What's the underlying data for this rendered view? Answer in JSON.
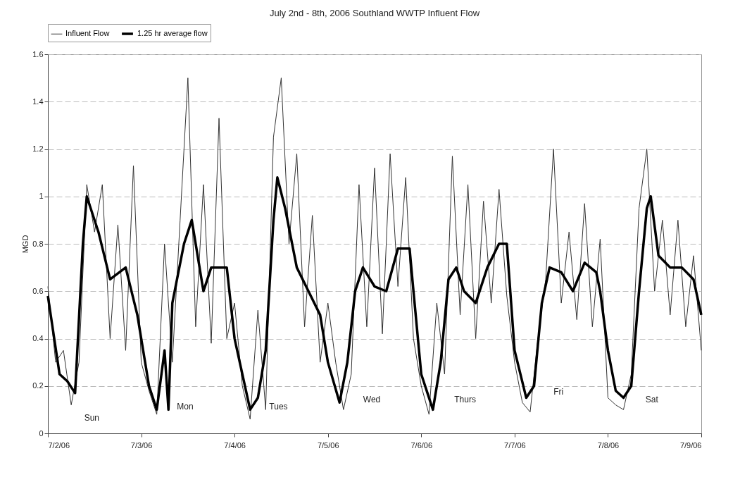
{
  "chart_data": {
    "type": "line",
    "title": "July 2nd - 8th, 2006 Southland WWTP Influent Flow",
    "ylabel": "MGD",
    "xlim": [
      "2006-07-02T00:00",
      "2006-07-09T00:00"
    ],
    "xticks": [
      {
        "value": "2006-07-02T00:00",
        "label": "7/2/06"
      },
      {
        "value": "2006-07-03T00:00",
        "label": "7/3/06"
      },
      {
        "value": "2006-07-04T00:00",
        "label": "7/4/06"
      },
      {
        "value": "2006-07-05T00:00",
        "label": "7/5/06"
      },
      {
        "value": "2006-07-06T00:00",
        "label": "7/6/06"
      },
      {
        "value": "2006-07-07T00:00",
        "label": "7/7/06"
      },
      {
        "value": "2006-07-08T00:00",
        "label": "7/8/06"
      },
      {
        "value": "2006-07-09T00:00",
        "label": "7/9/06"
      }
    ],
    "ylim": [
      0,
      1.6
    ],
    "yticks": [
      0,
      0.2,
      0.4,
      0.6,
      0.8,
      1,
      1.2,
      1.4,
      1.6
    ],
    "grid": "y",
    "legend": "top",
    "series": [
      {
        "name": "Influent Flow",
        "color": "#333333",
        "x": [
          "2006-07-02T00:00",
          "2006-07-02T02:00",
          "2006-07-02T04:00",
          "2006-07-02T06:00",
          "2006-07-02T08:00",
          "2006-07-02T10:00",
          "2006-07-02T12:00",
          "2006-07-02T14:00",
          "2006-07-02T16:00",
          "2006-07-02T18:00",
          "2006-07-02T20:00",
          "2006-07-02T22:00",
          "2006-07-03T00:00",
          "2006-07-03T02:00",
          "2006-07-03T04:00",
          "2006-07-03T06:00",
          "2006-07-03T08:00",
          "2006-07-03T10:00",
          "2006-07-03T12:00",
          "2006-07-03T14:00",
          "2006-07-03T16:00",
          "2006-07-03T18:00",
          "2006-07-03T20:00",
          "2006-07-03T22:00",
          "2006-07-04T00:00",
          "2006-07-04T02:00",
          "2006-07-04T04:00",
          "2006-07-04T06:00",
          "2006-07-04T08:00",
          "2006-07-04T10:00",
          "2006-07-04T12:00",
          "2006-07-04T14:00",
          "2006-07-04T16:00",
          "2006-07-04T18:00",
          "2006-07-04T20:00",
          "2006-07-04T22:00",
          "2006-07-05T00:00",
          "2006-07-05T02:00",
          "2006-07-05T04:00",
          "2006-07-05T06:00",
          "2006-07-05T08:00",
          "2006-07-05T10:00",
          "2006-07-05T12:00",
          "2006-07-05T14:00",
          "2006-07-05T16:00",
          "2006-07-05T18:00",
          "2006-07-05T20:00",
          "2006-07-05T22:00",
          "2006-07-06T00:00",
          "2006-07-06T02:00",
          "2006-07-06T04:00",
          "2006-07-06T06:00",
          "2006-07-06T08:00",
          "2006-07-06T10:00",
          "2006-07-06T12:00",
          "2006-07-06T14:00",
          "2006-07-06T16:00",
          "2006-07-06T18:00",
          "2006-07-06T20:00",
          "2006-07-06T22:00",
          "2006-07-07T00:00",
          "2006-07-07T02:00",
          "2006-07-07T04:00",
          "2006-07-07T06:00",
          "2006-07-07T08:00",
          "2006-07-07T10:00",
          "2006-07-07T12:00",
          "2006-07-07T14:00",
          "2006-07-07T16:00",
          "2006-07-07T18:00",
          "2006-07-07T20:00",
          "2006-07-07T22:00",
          "2006-07-08T00:00",
          "2006-07-08T02:00",
          "2006-07-08T04:00",
          "2006-07-08T06:00",
          "2006-07-08T08:00",
          "2006-07-08T10:00",
          "2006-07-08T12:00",
          "2006-07-08T14:00",
          "2006-07-08T16:00",
          "2006-07-08T18:00",
          "2006-07-08T20:00",
          "2006-07-08T22:00",
          "2006-07-09T00:00"
        ],
        "values": [
          0.62,
          0.3,
          0.35,
          0.12,
          0.3,
          1.05,
          0.85,
          1.05,
          0.4,
          0.88,
          0.35,
          1.13,
          0.3,
          0.18,
          0.08,
          0.8,
          0.3,
          0.9,
          1.5,
          0.45,
          1.05,
          0.38,
          1.33,
          0.4,
          0.55,
          0.2,
          0.06,
          0.52,
          0.1,
          1.25,
          1.5,
          0.8,
          1.18,
          0.45,
          0.92,
          0.3,
          0.55,
          0.3,
          0.1,
          0.25,
          1.05,
          0.45,
          1.12,
          0.42,
          1.18,
          0.62,
          1.08,
          0.4,
          0.2,
          0.08,
          0.55,
          0.25,
          1.17,
          0.5,
          1.05,
          0.4,
          0.98,
          0.55,
          1.03,
          0.58,
          0.3,
          0.13,
          0.09,
          0.4,
          0.65,
          1.2,
          0.55,
          0.85,
          0.48,
          0.97,
          0.45,
          0.82,
          0.15,
          0.12,
          0.1,
          0.25,
          0.95,
          1.2,
          0.6,
          0.9,
          0.5,
          0.9,
          0.45,
          0.75,
          0.35
        ]
      },
      {
        "name": "1.25 hr average flow",
        "color": "#000000",
        "x": [
          "2006-07-02T00:00",
          "2006-07-02T03:00",
          "2006-07-02T05:00",
          "2006-07-02T07:00",
          "2006-07-02T09:00",
          "2006-07-02T10:00",
          "2006-07-02T13:00",
          "2006-07-02T16:00",
          "2006-07-02T20:00",
          "2006-07-02T23:00",
          "2006-07-03T02:00",
          "2006-07-03T04:00",
          "2006-07-03T06:00",
          "2006-07-03T07:00",
          "2006-07-03T08:00",
          "2006-07-03T11:00",
          "2006-07-03T13:00",
          "2006-07-03T16:00",
          "2006-07-03T18:00",
          "2006-07-03T22:00",
          "2006-07-04T00:00",
          "2006-07-04T02:00",
          "2006-07-04T04:00",
          "2006-07-04T06:00",
          "2006-07-04T08:00",
          "2006-07-04T10:00",
          "2006-07-04T11:00",
          "2006-07-04T13:00",
          "2006-07-04T16:00",
          "2006-07-04T19:00",
          "2006-07-04T22:00",
          "2006-07-05T00:00",
          "2006-07-05T03:00",
          "2006-07-05T05:00",
          "2006-07-05T07:00",
          "2006-07-05T09:00",
          "2006-07-05T12:00",
          "2006-07-05T15:00",
          "2006-07-05T18:00",
          "2006-07-05T21:00",
          "2006-07-05T22:00",
          "2006-07-06T00:00",
          "2006-07-06T03:00",
          "2006-07-06T05:00",
          "2006-07-06T07:00",
          "2006-07-06T09:00",
          "2006-07-06T11:00",
          "2006-07-06T14:00",
          "2006-07-06T17:00",
          "2006-07-06T20:00",
          "2006-07-06T22:00",
          "2006-07-07T00:00",
          "2006-07-07T03:00",
          "2006-07-07T05:00",
          "2006-07-07T07:00",
          "2006-07-07T09:00",
          "2006-07-07T12:00",
          "2006-07-07T15:00",
          "2006-07-07T18:00",
          "2006-07-07T21:00",
          "2006-07-07T22:00",
          "2006-07-08T00:00",
          "2006-07-08T02:00",
          "2006-07-08T04:00",
          "2006-07-08T06:00",
          "2006-07-08T08:00",
          "2006-07-08T10:00",
          "2006-07-08T11:00",
          "2006-07-08T13:00",
          "2006-07-08T16:00",
          "2006-07-08T19:00",
          "2006-07-08T22:00",
          "2006-07-09T00:00"
        ],
        "values": [
          0.58,
          0.25,
          0.22,
          0.17,
          0.8,
          1.0,
          0.85,
          0.65,
          0.7,
          0.5,
          0.2,
          0.1,
          0.35,
          0.1,
          0.55,
          0.8,
          0.9,
          0.6,
          0.7,
          0.7,
          0.4,
          0.25,
          0.1,
          0.15,
          0.35,
          0.9,
          1.08,
          0.95,
          0.7,
          0.6,
          0.5,
          0.3,
          0.13,
          0.3,
          0.6,
          0.7,
          0.62,
          0.6,
          0.78,
          0.78,
          0.6,
          0.25,
          0.1,
          0.3,
          0.65,
          0.7,
          0.6,
          0.55,
          0.7,
          0.8,
          0.8,
          0.35,
          0.15,
          0.2,
          0.55,
          0.7,
          0.68,
          0.6,
          0.72,
          0.68,
          0.6,
          0.35,
          0.18,
          0.15,
          0.2,
          0.6,
          0.95,
          1.0,
          0.75,
          0.7,
          0.7,
          0.65,
          0.5
        ]
      }
    ],
    "annotations": [
      "Sun",
      "Mon",
      "Tues",
      "Wed",
      "Thurs",
      "Fri",
      "Sat"
    ]
  }
}
